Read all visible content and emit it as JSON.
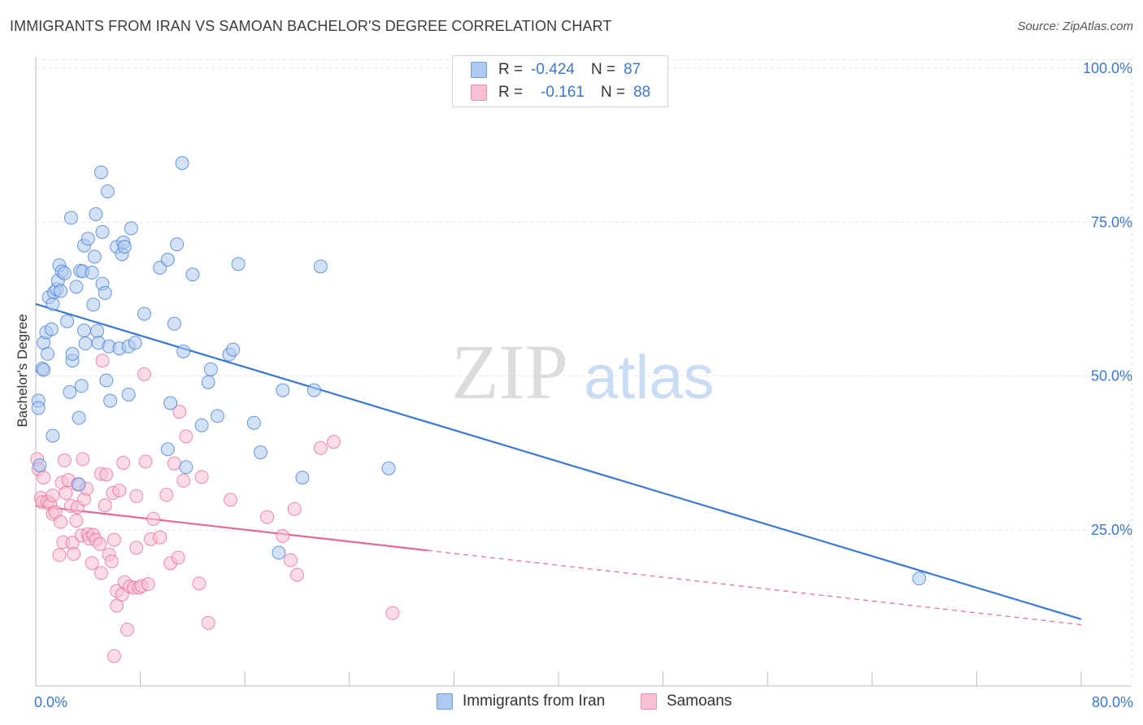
{
  "title": "IMMIGRANTS FROM IRAN VS SAMOAN BACHELOR'S DEGREE CORRELATION CHART",
  "source": "Source: ZipAtlas.com",
  "watermark": {
    "zip": "ZIP",
    "atlas": "atlas"
  },
  "legend": {
    "rows": [
      {
        "r_label": "R =",
        "r_value": "-0.424",
        "n_label": "N =",
        "n_value": "87",
        "color": "#aec9f0",
        "border": "#6f9fe0"
      },
      {
        "r_label": "R =",
        "r_value": "-0.161",
        "n_label": "N =",
        "n_value": "88",
        "color": "#f7bfd2",
        "border": "#ec8fb0"
      }
    ]
  },
  "bottom_legend": [
    {
      "label": "Immigrants from Iran",
      "color": "#aec9f0",
      "border": "#6f9fe0"
    },
    {
      "label": "Samoans",
      "color": "#f7bfd2",
      "border": "#ec8fb0"
    }
  ],
  "chart_data": {
    "type": "scatter",
    "title": "IMMIGRANTS FROM IRAN VS SAMOAN BACHELOR'S DEGREE CORRELATION CHART",
    "xlabel": "",
    "ylabel": "Bachelor's Degree",
    "xlim": [
      0,
      80
    ],
    "ylim": [
      0,
      102
    ],
    "x_tick_labels": [
      {
        "value": 0,
        "label": "0.0%"
      },
      {
        "value": 80,
        "label": "80.0%"
      }
    ],
    "y_tick_labels": [
      {
        "value": 25,
        "label": "25.0%"
      },
      {
        "value": 50,
        "label": "50.0%"
      },
      {
        "value": 75,
        "label": "75.0%"
      },
      {
        "value": 100,
        "label": "100.0%"
      }
    ],
    "grid": true,
    "series": [
      {
        "name": "Immigrants from Iran",
        "color": "#3a78d4",
        "fill": "#aec9f0",
        "trend": {
          "x": [
            0,
            80
          ],
          "y": [
            61.7,
            10.5
          ],
          "solid_until": 80
        },
        "points": [
          [
            0.2,
            46
          ],
          [
            0.2,
            44.8
          ],
          [
            0.3,
            35.5
          ],
          [
            0.5,
            51.2
          ],
          [
            0.6,
            51
          ],
          [
            0.6,
            55.4
          ],
          [
            0.8,
            57.1
          ],
          [
            0.9,
            53.6
          ],
          [
            1.0,
            62.8
          ],
          [
            1.2,
            57.6
          ],
          [
            1.3,
            61.7
          ],
          [
            1.3,
            40.3
          ],
          [
            1.4,
            63.6
          ],
          [
            1.6,
            64.1
          ],
          [
            1.7,
            65.5
          ],
          [
            1.8,
            68
          ],
          [
            1.9,
            63.8
          ],
          [
            2.0,
            67
          ],
          [
            2.2,
            66.7
          ],
          [
            2.4,
            58.9
          ],
          [
            2.6,
            47.4
          ],
          [
            2.7,
            75.7
          ],
          [
            2.8,
            52.5
          ],
          [
            2.8,
            53.6
          ],
          [
            3.1,
            64.5
          ],
          [
            3.3,
            32.4
          ],
          [
            3.3,
            43.2
          ],
          [
            3.4,
            67.1
          ],
          [
            3.5,
            48.4
          ],
          [
            3.6,
            67
          ],
          [
            3.7,
            71.2
          ],
          [
            3.7,
            57.4
          ],
          [
            3.8,
            55.3
          ],
          [
            4.0,
            72.3
          ],
          [
            4.3,
            66.8
          ],
          [
            4.4,
            61.6
          ],
          [
            4.5,
            69.4
          ],
          [
            4.6,
            76.3
          ],
          [
            4.7,
            57.3
          ],
          [
            4.8,
            55.4
          ],
          [
            5.0,
            83.1
          ],
          [
            5.1,
            73.4
          ],
          [
            5.1,
            65
          ],
          [
            5.3,
            63.5
          ],
          [
            5.4,
            49.3
          ],
          [
            5.5,
            80
          ],
          [
            5.6,
            54.8
          ],
          [
            5.7,
            46
          ],
          [
            6.2,
            71
          ],
          [
            6.4,
            54.5
          ],
          [
            6.6,
            69.8
          ],
          [
            6.7,
            71.7
          ],
          [
            6.8,
            71
          ],
          [
            7.1,
            47
          ],
          [
            7.1,
            54.8
          ],
          [
            7.3,
            74
          ],
          [
            7.6,
            55.4
          ],
          [
            8.3,
            60.1
          ],
          [
            9.5,
            67.6
          ],
          [
            10.1,
            38.1
          ],
          [
            10.1,
            68.9
          ],
          [
            10.3,
            45.6
          ],
          [
            10.6,
            58.5
          ],
          [
            10.8,
            71.4
          ],
          [
            11.2,
            84.6
          ],
          [
            11.3,
            54
          ],
          [
            11.5,
            35.2
          ],
          [
            12.0,
            66.5
          ],
          [
            12.7,
            42
          ],
          [
            13.2,
            49
          ],
          [
            13.4,
            51.1
          ],
          [
            13.9,
            43.5
          ],
          [
            14.8,
            53.5
          ],
          [
            15.1,
            54.3
          ],
          [
            15.5,
            68.2
          ],
          [
            16.7,
            42.4
          ],
          [
            17.2,
            37.6
          ],
          [
            18.6,
            21.3
          ],
          [
            18.9,
            47.7
          ],
          [
            20.4,
            33.5
          ],
          [
            21.3,
            47.7
          ],
          [
            21.8,
            67.8
          ],
          [
            27.0,
            35
          ],
          [
            67.6,
            17.1
          ]
        ]
      },
      {
        "name": "Samoans",
        "color": "#e8669a",
        "fill": "#f7bfd2",
        "trend": {
          "x": [
            0,
            80
          ],
          "y": [
            28.9,
            9.6
          ],
          "solid_until": 30
        },
        "points": [
          [
            0.1,
            36.5
          ],
          [
            0.2,
            34.9
          ],
          [
            0.4,
            30.2
          ],
          [
            0.5,
            29.5
          ],
          [
            0.6,
            33.5
          ],
          [
            0.9,
            29.6
          ],
          [
            1.1,
            29.2
          ],
          [
            1.3,
            30.6
          ],
          [
            1.3,
            27.6
          ],
          [
            1.5,
            27.9
          ],
          [
            1.8,
            20.9
          ],
          [
            1.9,
            26.3
          ],
          [
            2.0,
            32.7
          ],
          [
            2.1,
            23
          ],
          [
            2.2,
            36.3
          ],
          [
            2.3,
            31
          ],
          [
            2.5,
            33.1
          ],
          [
            2.7,
            28.9
          ],
          [
            2.8,
            22.9
          ],
          [
            2.9,
            21.1
          ],
          [
            3.1,
            26.5
          ],
          [
            3.2,
            32.4
          ],
          [
            3.2,
            28.7
          ],
          [
            3.5,
            24.1
          ],
          [
            3.6,
            36.5
          ],
          [
            3.7,
            30
          ],
          [
            3.9,
            31.7
          ],
          [
            4.0,
            24.3
          ],
          [
            4.1,
            23.6
          ],
          [
            4.3,
            19.6
          ],
          [
            4.4,
            24.2
          ],
          [
            4.6,
            23.4
          ],
          [
            4.9,
            22.7
          ],
          [
            5.0,
            18
          ],
          [
            5.0,
            34.1
          ],
          [
            5.1,
            52.5
          ],
          [
            5.3,
            29
          ],
          [
            5.4,
            34
          ],
          [
            5.6,
            21
          ],
          [
            5.8,
            19.9
          ],
          [
            5.9,
            31
          ],
          [
            6.0,
            23.4
          ],
          [
            6.2,
            15.1
          ],
          [
            6.2,
            12.7
          ],
          [
            6.4,
            31.4
          ],
          [
            6.6,
            14.5
          ],
          [
            6.7,
            35.9
          ],
          [
            6.8,
            16.5
          ],
          [
            7.0,
            8.8
          ],
          [
            7.2,
            15.8
          ],
          [
            7.5,
            15.6
          ],
          [
            7.7,
            22.1
          ],
          [
            7.7,
            30.5
          ],
          [
            7.9,
            15.6
          ],
          [
            8.1,
            15.9
          ],
          [
            8.3,
            50.3
          ],
          [
            8.4,
            36.1
          ],
          [
            8.6,
            16.2
          ],
          [
            8.8,
            23.5
          ],
          [
            9.0,
            26.8
          ],
          [
            9.5,
            23.8
          ],
          [
            10.0,
            30.7
          ],
          [
            10.3,
            19.6
          ],
          [
            10.6,
            35.8
          ],
          [
            10.9,
            20.5
          ],
          [
            11.0,
            44.2
          ],
          [
            11.3,
            33
          ],
          [
            11.5,
            40.2
          ],
          [
            12.5,
            16.3
          ],
          [
            12.7,
            33.6
          ],
          [
            13.2,
            9.9
          ],
          [
            14.9,
            29.9
          ],
          [
            17.7,
            27.1
          ],
          [
            18.9,
            24
          ],
          [
            19.5,
            20.1
          ],
          [
            19.8,
            28.4
          ],
          [
            20.0,
            17.7
          ],
          [
            21.8,
            38.3
          ],
          [
            22.8,
            39.3
          ],
          [
            27.3,
            11.5
          ],
          [
            6.0,
            4.5
          ]
        ]
      }
    ]
  }
}
